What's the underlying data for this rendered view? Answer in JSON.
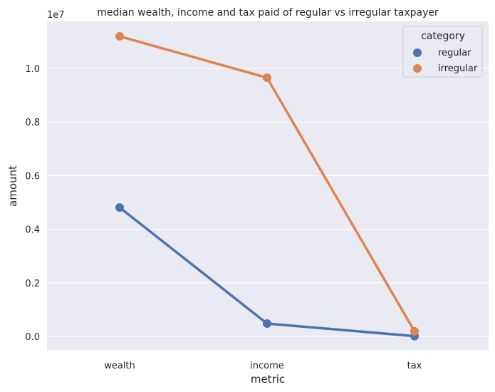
{
  "chart_data": {
    "type": "line",
    "title": "median wealth, income and tax paid of regular vs irregular taxpayer",
    "xlabel": "metric",
    "ylabel": "amount",
    "y_offset_label": "1e7",
    "categories": [
      "wealth",
      "income",
      "tax"
    ],
    "yticks": [
      0.0,
      0.2,
      0.4,
      0.6,
      0.8,
      1.0
    ],
    "ytick_labels": [
      "0.0",
      "0.2",
      "0.4",
      "0.6",
      "0.8",
      "1.0"
    ],
    "ylim": [
      -500000,
      11650000
    ],
    "grid": true,
    "legend": {
      "title": "category",
      "placement": "top-right"
    },
    "series": [
      {
        "name": "regular",
        "color": "#4c72b0",
        "values": [
          4810000,
          480000,
          10000
        ]
      },
      {
        "name": "irregular",
        "color": "#dd8452",
        "values": [
          11200000,
          9650000,
          190000
        ]
      }
    ]
  }
}
